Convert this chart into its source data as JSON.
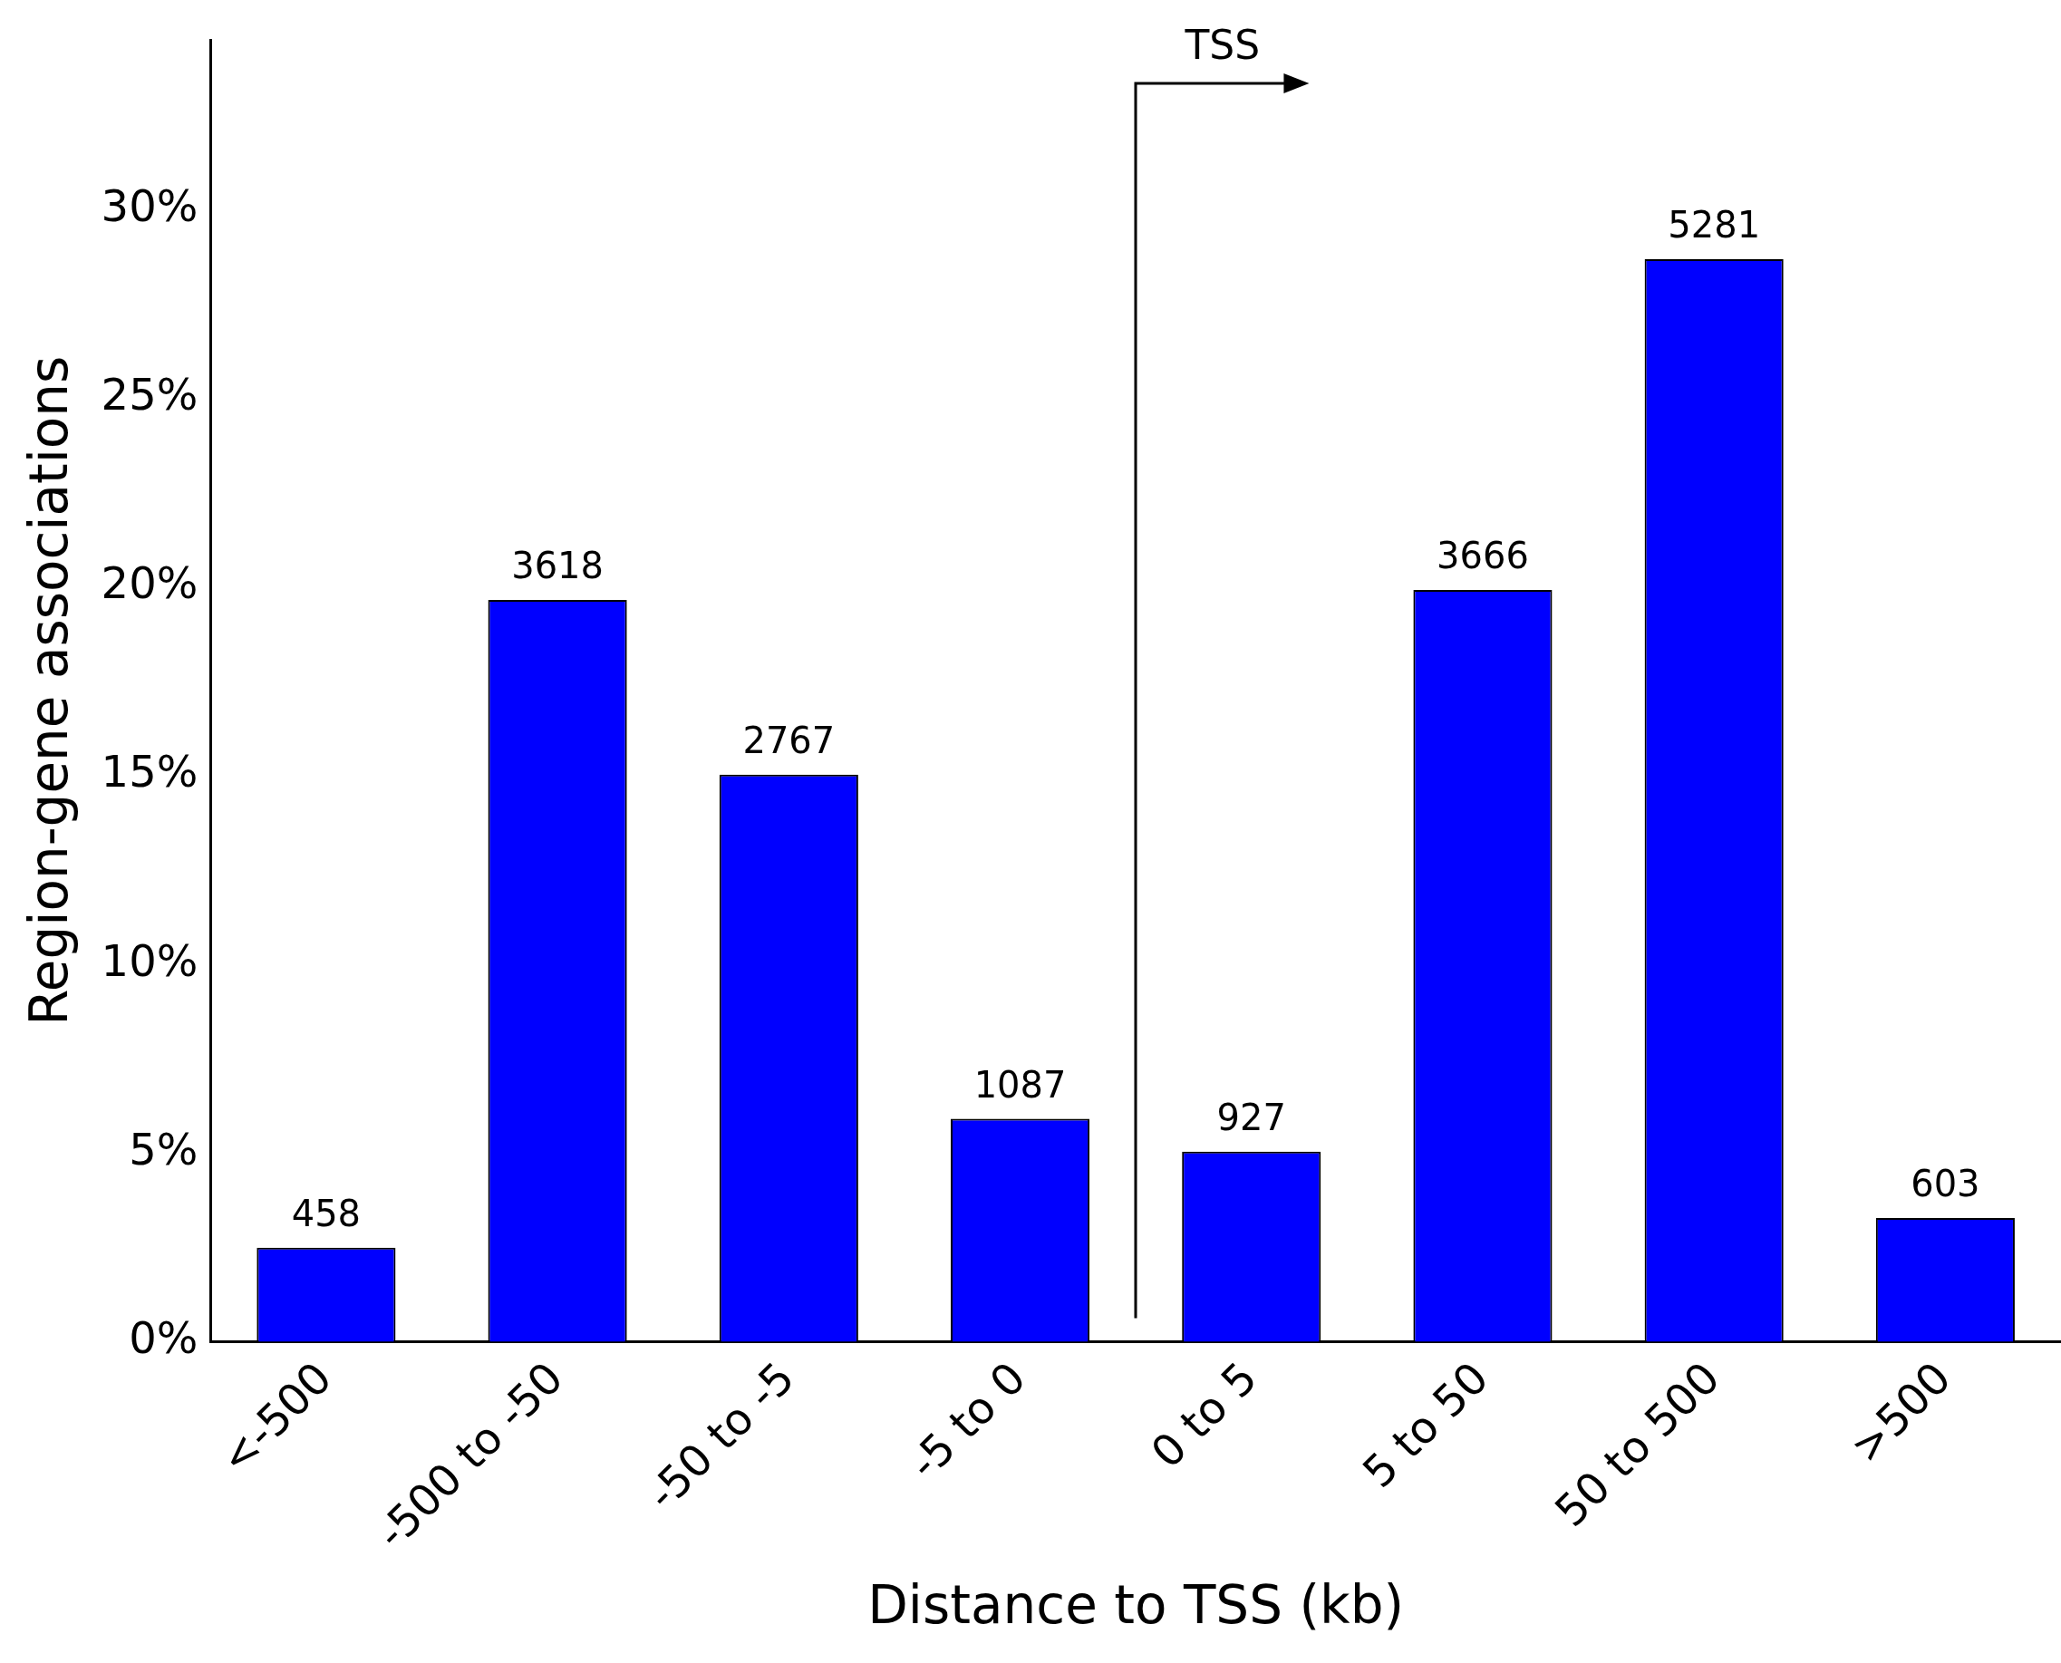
{
  "chart_data": {
    "type": "bar",
    "xlabel": "Distance to TSS (kb)",
    "ylabel": "Region-gene associations",
    "categories": [
      "<-500",
      "-500 to -50",
      "-50 to -5",
      "-5 to 0",
      "0 to 5",
      "5 to 50",
      "50 to 500",
      ">500"
    ],
    "values": [
      2.49,
      19.66,
      15.03,
      5.91,
      5.04,
      19.92,
      28.69,
      3.28
    ],
    "color": "#0000ff",
    "ylim": [
      0,
      34.5
    ],
    "yticks": [
      {
        "value": 0,
        "label": "0%"
      },
      {
        "value": 5,
        "label": "5%"
      },
      {
        "value": 10,
        "label": "10%"
      },
      {
        "value": 15,
        "label": "15%"
      },
      {
        "value": 20,
        "label": "20%"
      },
      {
        "value": 25,
        "label": "25%"
      },
      {
        "value": 30,
        "label": "30%"
      }
    ],
    "annotations": [
      "TSS",
      {
        "text": "458",
        "x": "<-500",
        "y": 2.49
      },
      {
        "text": "3618",
        "x": "-500 to -50",
        "y": 19.66
      },
      {
        "text": "2767",
        "x": "-50 to -5",
        "y": 15.03
      },
      {
        "text": "1087",
        "x": "-5 to 0",
        "y": 5.91
      },
      {
        "text": "927",
        "x": "0 to 5",
        "y": 5.04
      },
      {
        "text": "3666",
        "x": "5 to 50",
        "y": 19.92
      },
      {
        "text": "5281",
        "x": "50 to 500",
        "y": 28.69
      },
      {
        "text": "603",
        "x": ">500",
        "y": 3.28
      }
    ],
    "grid": false,
    "legend": false
  }
}
